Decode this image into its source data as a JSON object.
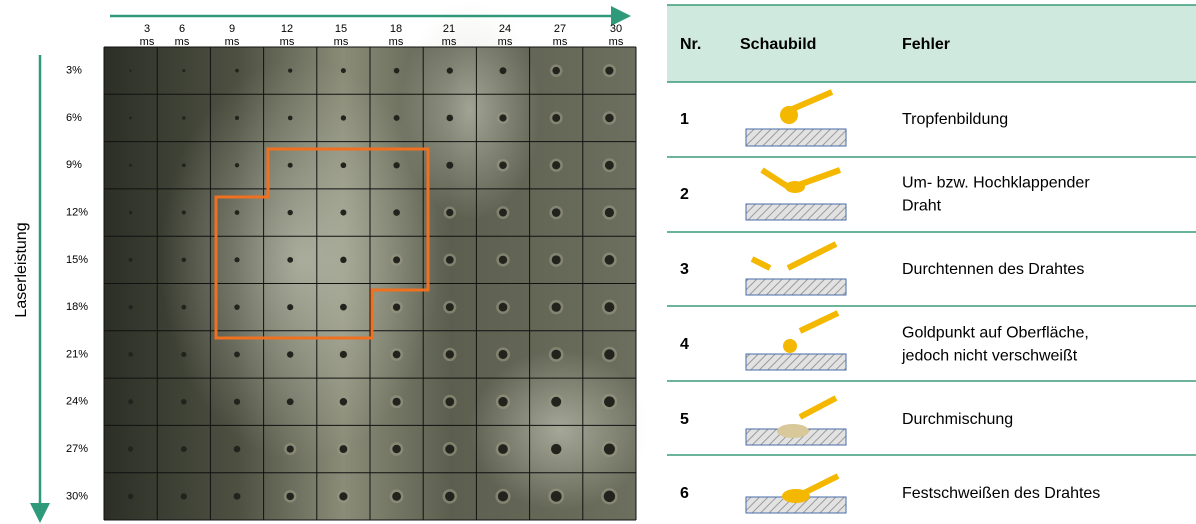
{
  "grid": {
    "columns": [
      {
        "value": "3",
        "unit": "ms"
      },
      {
        "value": "6",
        "unit": "ms"
      },
      {
        "value": "9",
        "unit": "ms"
      },
      {
        "value": "12",
        "unit": "ms"
      },
      {
        "value": "15",
        "unit": "ms"
      },
      {
        "value": "18",
        "unit": "ms"
      },
      {
        "value": "21",
        "unit": "ms"
      },
      {
        "value": "24",
        "unit": "ms"
      },
      {
        "value": "27",
        "unit": "ms"
      },
      {
        "value": "30",
        "unit": "ms"
      }
    ],
    "rows": [
      "3%",
      "6%",
      "9%",
      "12%",
      "15%",
      "18%",
      "21%",
      "24%",
      "27%",
      "30%"
    ],
    "axis_label": "Laserleistung"
  },
  "table": {
    "header": [
      "Nr.",
      "Schaubild",
      "Fehler"
    ],
    "rows": [
      {
        "nr": "1",
        "fehler": [
          "Tropfenbildung"
        ]
      },
      {
        "nr": "2",
        "fehler": [
          "Um- bzw. Hochklappender",
          "Draht"
        ]
      },
      {
        "nr": "3",
        "fehler": [
          "Durchtennen des Drahtes"
        ]
      },
      {
        "nr": "4",
        "fehler": [
          "Goldpunkt auf Oberfläche,",
          "jedoch nicht verschweißt"
        ]
      },
      {
        "nr": "5",
        "fehler": [
          "Durchmischung"
        ]
      },
      {
        "nr": "6",
        "fehler": [
          "Festschweißen des Drahtes"
        ]
      }
    ]
  }
}
